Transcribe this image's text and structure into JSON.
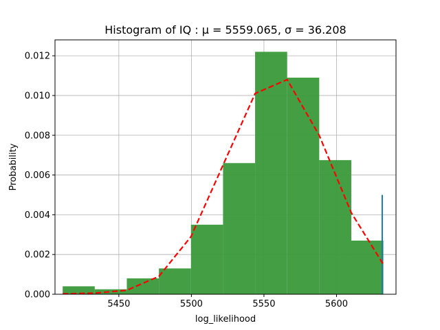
{
  "chart_data": {
    "type": "bar",
    "title": "Histogram of IQ :  μ = 5559.065,  σ = 36.208",
    "xlabel": "log_likelihood",
    "ylabel": "Probability",
    "xlim": [
      5406,
      5641
    ],
    "ylim": [
      0,
      0.0128
    ],
    "grid": true,
    "x_ticks": [
      5450,
      5500,
      5550,
      5600
    ],
    "y_ticks": [
      0.0,
      0.002,
      0.004,
      0.006,
      0.008,
      0.01,
      0.012
    ],
    "y_tick_labels": [
      "0.000",
      "0.002",
      "0.004",
      "0.006",
      "0.008",
      "0.010",
      "0.012"
    ],
    "bins": [
      {
        "x0": 5411.3,
        "x1": 5433.4,
        "value": 0.0004
      },
      {
        "x0": 5433.4,
        "x1": 5455.5,
        "value": 0.00025
      },
      {
        "x0": 5455.5,
        "x1": 5477.6,
        "value": 0.0008
      },
      {
        "x0": 5477.6,
        "x1": 5499.7,
        "value": 0.0013
      },
      {
        "x0": 5499.7,
        "x1": 5521.8,
        "value": 0.0035
      },
      {
        "x0": 5521.8,
        "x1": 5543.9,
        "value": 0.0066
      },
      {
        "x0": 5543.9,
        "x1": 5566.0,
        "value": 0.0122
      },
      {
        "x0": 5566.0,
        "x1": 5588.1,
        "value": 0.0109
      },
      {
        "x0": 5588.1,
        "x1": 5610.2,
        "value": 0.00675
      },
      {
        "x0": 5610.2,
        "x1": 5632.3,
        "value": 0.0027
      }
    ],
    "bar_color": "#3a9a3a",
    "fit_line": {
      "color": "#ff0000",
      "style": "dashed",
      "x": [
        5411.3,
        5433.4,
        5455.5,
        5477.6,
        5499.7,
        5521.8,
        5543.9,
        5566.0,
        5588.1,
        5610.2,
        5632.3
      ],
      "y": [
        2e-05,
        6e-05,
        0.0002,
        0.0009,
        0.0029,
        0.0065,
        0.0101,
        0.0108,
        0.008,
        0.0041,
        0.0015
      ]
    },
    "marker_line": {
      "x": 5631.5,
      "value": 0.005,
      "color": "#1f77b4"
    }
  }
}
